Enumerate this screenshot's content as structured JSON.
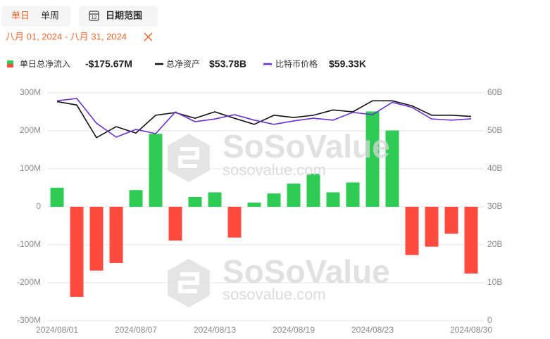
{
  "header": {
    "period_day": "单日",
    "period_week": "单周",
    "date_range_button": "日期范围",
    "selected_range": "八月 01, 2024 - 八月 31, 2024"
  },
  "watermarks": [
    {
      "brand": "SoSoValue",
      "url": "sosovalue.com"
    },
    {
      "brand": "SoSoValue",
      "url": "sosovalue.com"
    }
  ],
  "chart_data": {
    "type": "bar",
    "categories": [
      "2024/08/01",
      null,
      null,
      null,
      "2024/08/07",
      null,
      null,
      null,
      "2024/08/13",
      null,
      null,
      null,
      "2024/08/19",
      null,
      null,
      null,
      "2024/08/23",
      null,
      null,
      null,
      null,
      "2024/08/30"
    ],
    "series": [
      {
        "name": "单日总净流入",
        "type": "bar",
        "legend_value": "-$175.67M",
        "positive_color": "#2fcc55",
        "negative_color": "#ff4a3f",
        "values": [
          50,
          -237,
          -168,
          -148,
          44,
          192,
          -89,
          26,
          38,
          -81,
          11,
          35,
          61,
          87,
          38,
          64,
          251,
          201,
          -127,
          -105,
          -71,
          -175.67
        ]
      },
      {
        "name": "总净资产",
        "type": "line",
        "axis": "y2",
        "legend_value": "$53.78B",
        "color": "#111111",
        "values": [
          57.7,
          56.8,
          48.2,
          51.1,
          49.4,
          54.1,
          54.8,
          53.3,
          55.0,
          53.3,
          51.7,
          54.1,
          53.5,
          54.1,
          55.5,
          55.0,
          57.9,
          57.9,
          56.6,
          54.1,
          54.1,
          53.78
        ]
      },
      {
        "name": "比特币价格",
        "type": "line",
        "axis": "hidden",
        "legend_value": "$59.33K",
        "color": "#6b2fd6",
        "values": [
          64.0,
          64.6,
          58.2,
          54.6,
          56.6,
          55.5,
          61.1,
          58.6,
          59.3,
          60.4,
          59.0,
          57.9,
          58.8,
          59.5,
          59.0,
          61.0,
          60.4,
          63.6,
          62.3,
          59.3,
          59.0,
          59.33
        ]
      }
    ],
    "ylim": [
      -300,
      300
    ],
    "yticks": [
      {
        "value": -300,
        "label": "-300M"
      },
      {
        "value": -200,
        "label": "-200M"
      },
      {
        "value": -100,
        "label": "-100M"
      },
      0,
      {
        "value": 100,
        "label": "100M"
      },
      {
        "value": 200,
        "label": "200M"
      },
      {
        "value": 300,
        "label": "300M"
      }
    ],
    "y2lim": [
      0,
      60
    ],
    "y2ticks": [
      0,
      {
        "value": 10,
        "label": "10B"
      },
      {
        "value": 20,
        "label": "20B"
      },
      {
        "value": 30,
        "label": "30B"
      },
      {
        "value": 40,
        "label": "40B"
      },
      {
        "value": 50,
        "label": "50B"
      },
      {
        "value": 60,
        "label": "60B"
      }
    ],
    "grid": true
  }
}
